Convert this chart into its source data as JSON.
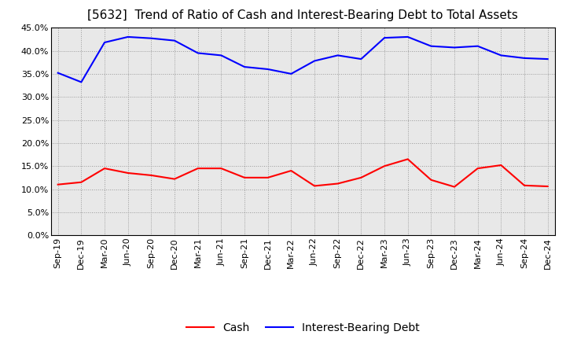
{
  "title": "[5632]  Trend of Ratio of Cash and Interest-Bearing Debt to Total Assets",
  "labels": [
    "Sep-19",
    "Dec-19",
    "Mar-20",
    "Jun-20",
    "Sep-20",
    "Dec-20",
    "Mar-21",
    "Jun-21",
    "Sep-21",
    "Dec-21",
    "Mar-22",
    "Jun-22",
    "Sep-22",
    "Dec-22",
    "Mar-23",
    "Jun-23",
    "Sep-23",
    "Dec-23",
    "Mar-24",
    "Jun-24",
    "Sep-24",
    "Dec-24"
  ],
  "cash": [
    0.11,
    0.115,
    0.145,
    0.135,
    0.13,
    0.122,
    0.145,
    0.145,
    0.125,
    0.125,
    0.14,
    0.107,
    0.112,
    0.125,
    0.15,
    0.165,
    0.12,
    0.105,
    0.145,
    0.152,
    0.108,
    0.106
  ],
  "debt": [
    0.352,
    0.332,
    0.418,
    0.43,
    0.427,
    0.422,
    0.395,
    0.39,
    0.365,
    0.36,
    0.35,
    0.378,
    0.39,
    0.382,
    0.428,
    0.43,
    0.41,
    0.407,
    0.41,
    0.39,
    0.384,
    0.382
  ],
  "cash_color": "#ff0000",
  "debt_color": "#0000ff",
  "ylim": [
    0.0,
    0.45
  ],
  "yticks": [
    0.0,
    0.05,
    0.1,
    0.15,
    0.2,
    0.25,
    0.3,
    0.35,
    0.4,
    0.45
  ],
  "background_color": "#ffffff",
  "plot_bg_color": "#e8e8e8",
  "grid_color": "#999999",
  "title_fontsize": 11,
  "axis_fontsize": 8,
  "legend_fontsize": 10,
  "line_width": 1.5
}
